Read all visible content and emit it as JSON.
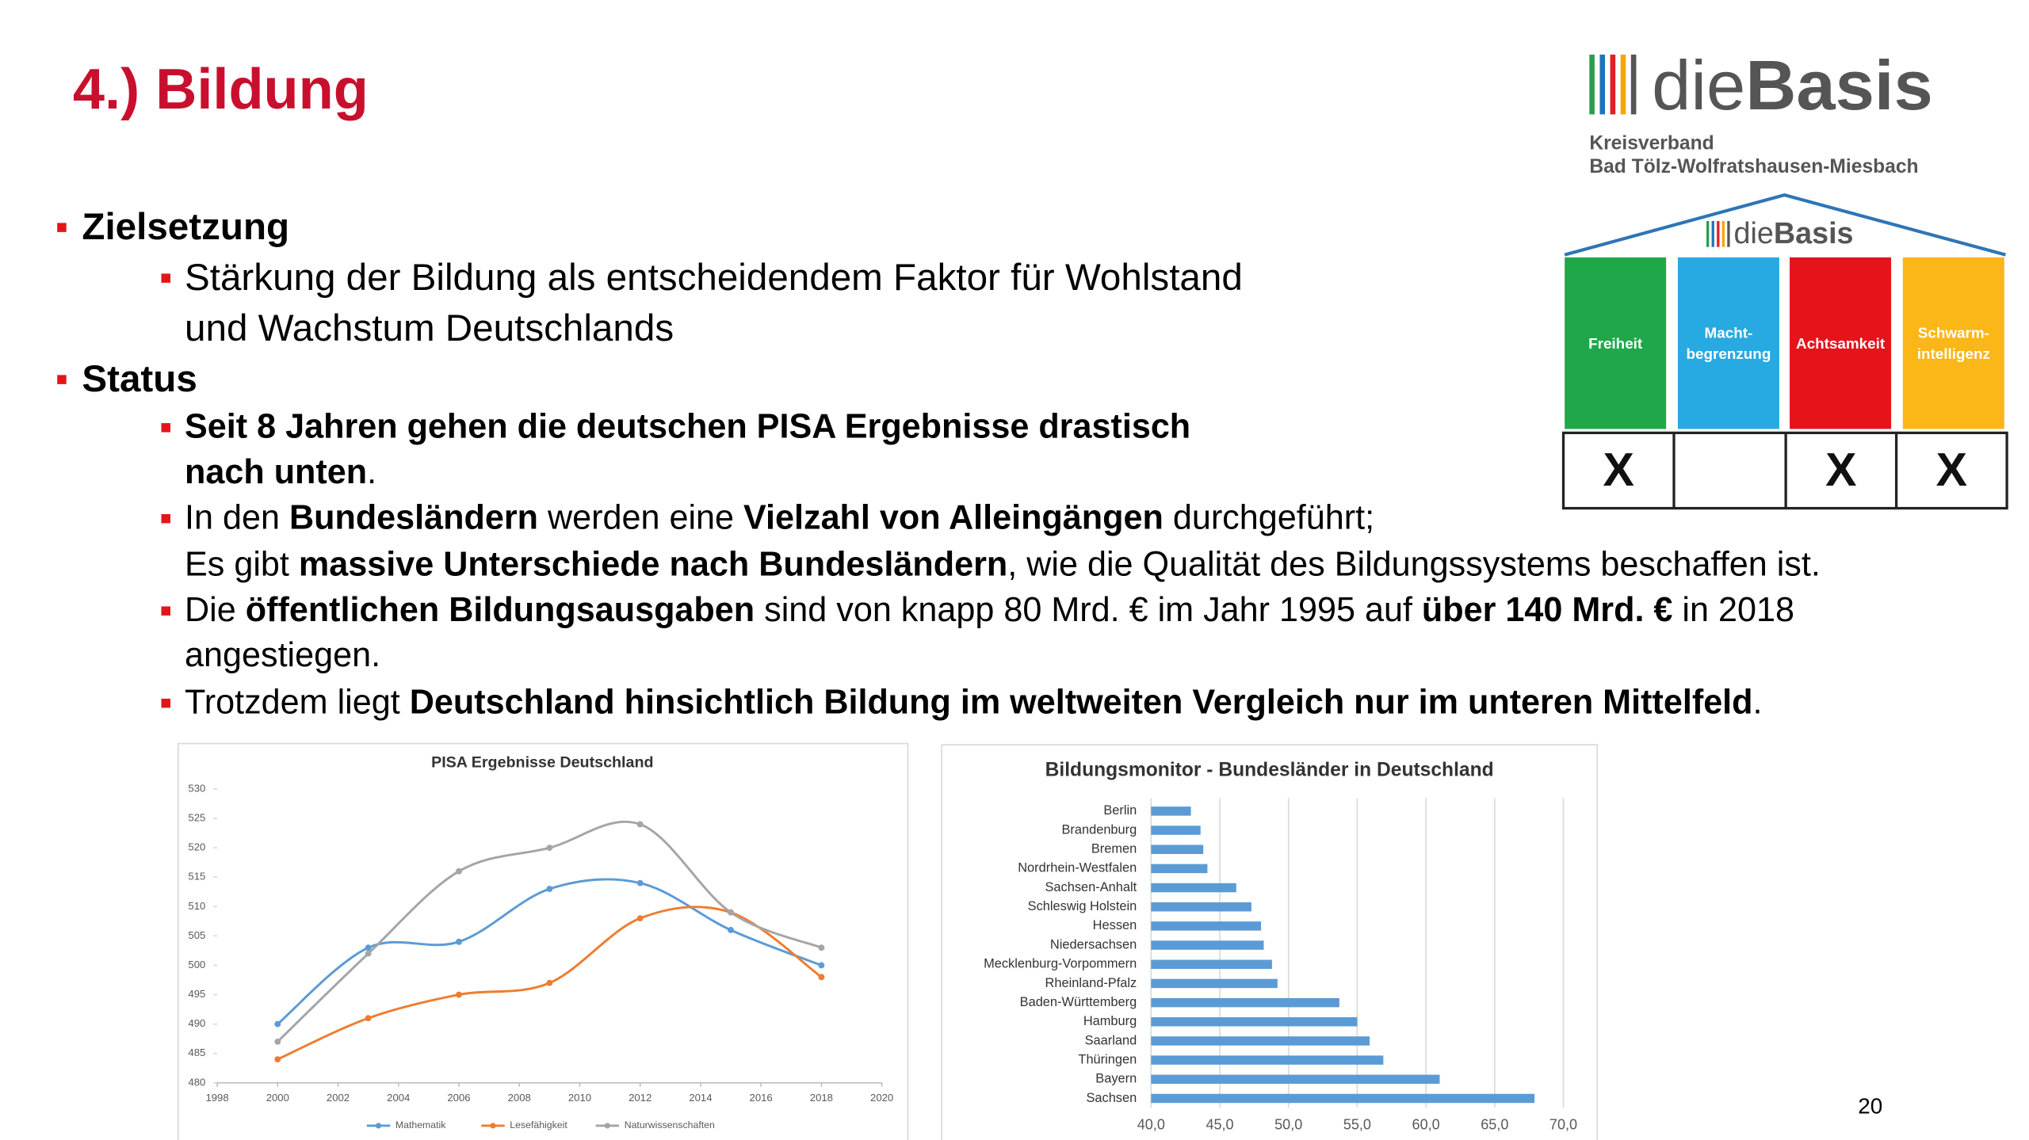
{
  "header": {
    "title": "4.) Bildung",
    "page_number": "20"
  },
  "logo": {
    "name_light": "die",
    "name_bold": "Basis",
    "subtitle_lines": [
      "Kreisverband",
      "Bad Tölz-Wolfratshausen-Miesbach"
    ]
  },
  "pillars": {
    "logo_light": "die",
    "logo_bold": "Basis",
    "items": [
      {
        "label_lines": [
          "Freiheit"
        ],
        "color": "#1fa84a",
        "mark": "X"
      },
      {
        "label_lines": [
          "Macht-",
          "begrenzung"
        ],
        "color": "#27aae1",
        "mark": null
      },
      {
        "label_lines": [
          "Achtsamkeit"
        ],
        "color": "#e5141b",
        "mark": "X"
      },
      {
        "label_lines": [
          "Schwarm-",
          "intelligenz"
        ],
        "color": "#fbb617",
        "mark": "X"
      }
    ]
  },
  "bullets": [
    {
      "level": 1,
      "lines": [
        [
          {
            "text": "Zielsetzung",
            "bold": true
          }
        ]
      ]
    },
    {
      "level": 2,
      "lines": [
        [
          {
            "text": "Stärkung der Bildung als entscheidendem Faktor für Wohlstand",
            "bold": false
          }
        ],
        [
          {
            "text": "und Wachstum Deutschlands",
            "bold": false
          }
        ]
      ]
    },
    {
      "level": 1,
      "lines": [
        [
          {
            "text": "Status",
            "bold": true
          }
        ]
      ]
    },
    {
      "level": 2,
      "lines": [
        [
          {
            "text": "Seit 8 Jahren gehen die deutschen PISA Ergebnisse drastisch",
            "bold": true
          }
        ],
        [
          {
            "text": "nach unten",
            "bold": true
          },
          {
            "text": ".",
            "bold": false
          }
        ]
      ]
    },
    {
      "level": 2,
      "lines": [
        [
          {
            "text": "In den ",
            "bold": false
          },
          {
            "text": "Bundesländern",
            "bold": true
          },
          {
            "text": " werden eine ",
            "bold": false
          },
          {
            "text": "Vielzahl von Alleingängen",
            "bold": true
          },
          {
            "text": " durchgeführt;",
            "bold": false
          }
        ],
        [
          {
            "text": "Es gibt ",
            "bold": false
          },
          {
            "text": "massive Unterschiede nach Bundesländern",
            "bold": true
          },
          {
            "text": ", wie die Qualität des Bildungssystems beschaffen ist.",
            "bold": false
          }
        ]
      ]
    },
    {
      "level": 2,
      "lines": [
        [
          {
            "text": "Die ",
            "bold": false
          },
          {
            "text": "öffentlichen Bildungsausgaben",
            "bold": true
          },
          {
            "text": " sind von knapp 80 Mrd. € im Jahr 1995 auf ",
            "bold": false
          },
          {
            "text": "über 140 Mrd. €",
            "bold": true
          },
          {
            "text": " in 2018",
            "bold": false
          }
        ],
        [
          {
            "text": "angestiegen.",
            "bold": false
          }
        ]
      ]
    },
    {
      "level": 2,
      "lines": [
        [
          {
            "text": "Trotzdem liegt ",
            "bold": false
          },
          {
            "text": "Deutschland hinsichtlich Bildung im weltweiten Vergleich nur im unteren Mittelfeld",
            "bold": true
          },
          {
            "text": ".",
            "bold": false
          }
        ]
      ]
    }
  ],
  "chart_data": [
    {
      "type": "line",
      "title": "PISA Ergebnisse Deutschland",
      "x": [
        2000,
        2003,
        2006,
        2009,
        2012,
        2015,
        2018
      ],
      "series": [
        {
          "name": "Mathematik",
          "color": "#5b9bd5",
          "values": [
            490,
            503,
            504,
            513,
            514,
            506,
            500
          ]
        },
        {
          "name": "Lesefähigkeit",
          "color": "#ed7d31",
          "values": [
            484,
            491,
            495,
            497,
            508,
            509,
            498
          ]
        },
        {
          "name": "Naturwissenschaften",
          "color": "#a5a5a5",
          "values": [
            487,
            502,
            516,
            520,
            524,
            509,
            503
          ]
        }
      ],
      "xlim": [
        1998,
        2020
      ],
      "xticks": [
        1998,
        2000,
        2002,
        2004,
        2006,
        2008,
        2010,
        2012,
        2014,
        2016,
        2018,
        2020
      ],
      "ylim": [
        480,
        530
      ],
      "yticks": [
        480,
        485,
        490,
        495,
        500,
        505,
        510,
        515,
        520,
        525,
        530
      ],
      "smooth": true,
      "legend": "bottom"
    },
    {
      "type": "bar",
      "orientation": "horizontal",
      "title": "Bildungsmonitor - Bundesländer in Deutschland",
      "categories": [
        "Berlin",
        "Brandenburg",
        "Bremen",
        "Nordrhein-Westfalen",
        "Sachsen-Anhalt",
        "Schleswig Holstein",
        "Hessen",
        "Niedersachsen",
        "Mecklenburg-Vorpommern",
        "Rheinland-Pfalz",
        "Baden-Württemberg",
        "Hamburg",
        "Saarland",
        "Thüringen",
        "Bayern",
        "Sachsen"
      ],
      "values": [
        42.9,
        43.6,
        43.8,
        44.1,
        46.2,
        47.3,
        48.0,
        48.2,
        48.8,
        49.2,
        53.7,
        55.0,
        55.9,
        56.9,
        61.0,
        67.9
      ],
      "color": "#5b9bd5",
      "xlim": [
        40,
        70
      ],
      "xticks": [
        {
          "value": 40,
          "label": "40,0"
        },
        {
          "value": 45,
          "label": "45,0"
        },
        {
          "value": 50,
          "label": "50,0"
        },
        {
          "value": 55,
          "label": "55,0"
        },
        {
          "value": 60,
          "label": "60,0"
        },
        {
          "value": 65,
          "label": "65,0"
        },
        {
          "value": 70,
          "label": "70,0"
        }
      ],
      "grid": true
    }
  ]
}
